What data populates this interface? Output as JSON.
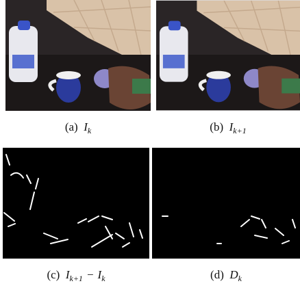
{
  "figure": {
    "panels": [
      {
        "label": "(a)",
        "parts": [
          {
            "t": "I",
            "sub": "k"
          }
        ]
      },
      {
        "label": "(b)",
        "parts": [
          {
            "t": "I",
            "sub": "k+1"
          }
        ]
      },
      {
        "label": "(c)",
        "parts": [
          {
            "t": "I",
            "sub": "k+1"
          },
          {
            "t": "−"
          },
          {
            "t": "I",
            "sub": "k"
          }
        ]
      },
      {
        "label": "(d)",
        "parts": [
          {
            "t": "D",
            "sub": "k"
          }
        ]
      }
    ]
  }
}
